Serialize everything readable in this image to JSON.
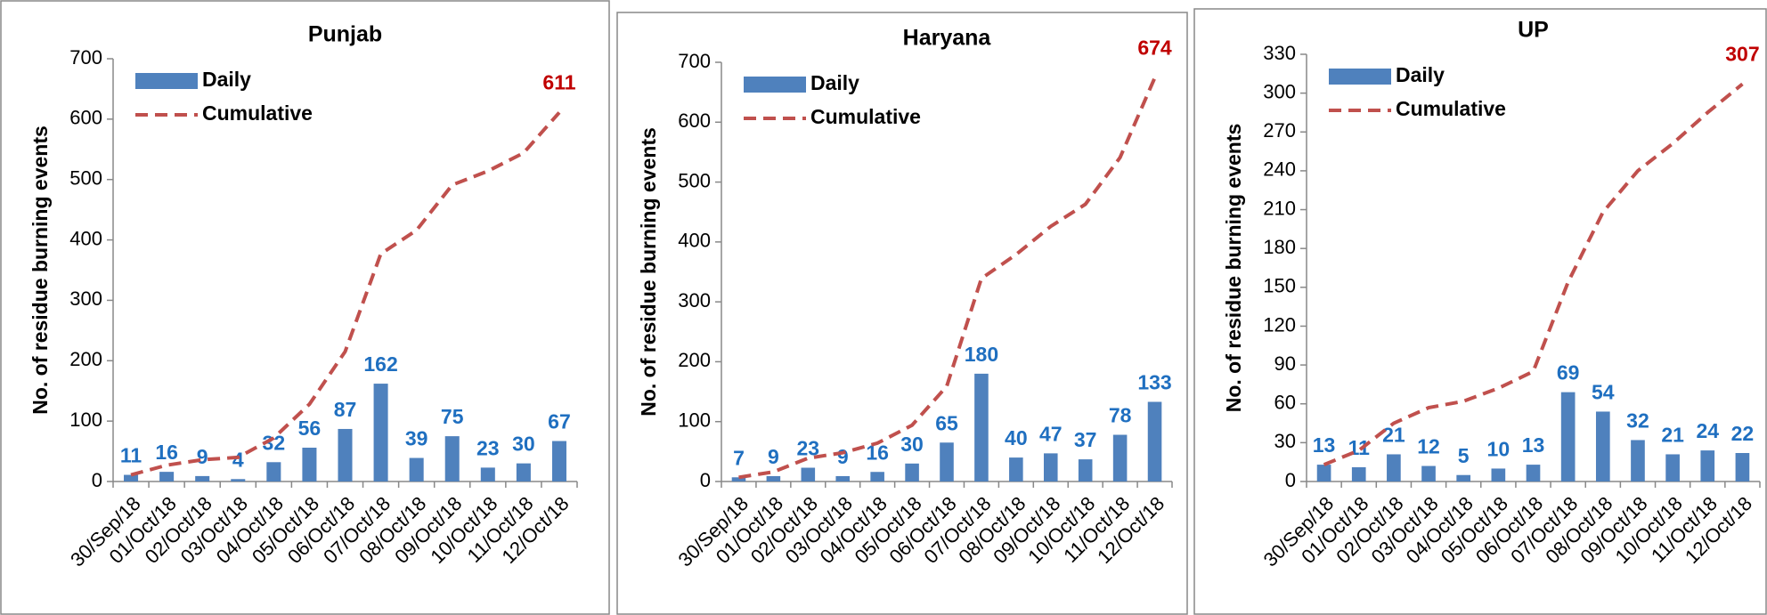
{
  "chart_data": [
    {
      "type": "bar",
      "title": "Punjab",
      "ylabel": "No. of residue burning events",
      "categories": [
        "30/Sep/18",
        "01/Oct/18",
        "02/Oct/18",
        "03/Oct/18",
        "04/Oct/18",
        "05/Oct/18",
        "06/Oct/18",
        "07/Oct/18",
        "08/Oct/18",
        "09/Oct/18",
        "10/Oct/18",
        "11/Oct/18",
        "12/Oct/18"
      ],
      "series": [
        {
          "name": "Daily",
          "type": "bar",
          "color": "#4f81bd",
          "label_color": "#1f6fc0",
          "values": [
            11,
            16,
            9,
            4,
            32,
            56,
            87,
            162,
            39,
            75,
            23,
            30,
            67
          ]
        },
        {
          "name": "Cumulative",
          "type": "line",
          "color": "#c0504d",
          "label_color": "#c00000",
          "values": [
            11,
            27,
            36,
            40,
            72,
            128,
            215,
            377,
            416,
            491,
            514,
            544,
            611
          ]
        }
      ],
      "ylim": [
        0,
        700
      ],
      "yticks": [
        0,
        100,
        200,
        300,
        400,
        500,
        600,
        700
      ]
    },
    {
      "type": "bar",
      "title": "Haryana",
      "ylabel": "No. of residue burning  events",
      "categories": [
        "30/Sep/18",
        "01/Oct/18",
        "02/Oct/18",
        "03/Oct/18",
        "04/Oct/18",
        "05/Oct/18",
        "06/Oct/18",
        "07/Oct/18",
        "08/Oct/18",
        "09/Oct/18",
        "10/Oct/18",
        "11/Oct/18",
        "12/Oct/18"
      ],
      "series": [
        {
          "name": "Daily",
          "type": "bar",
          "color": "#4f81bd",
          "label_color": "#1f6fc0",
          "values": [
            7,
            9,
            23,
            9,
            16,
            30,
            65,
            180,
            40,
            47,
            37,
            78,
            133
          ]
        },
        {
          "name": "Cumulative",
          "type": "line",
          "color": "#c0504d",
          "label_color": "#c00000",
          "values": [
            7,
            16,
            39,
            48,
            64,
            94,
            159,
            339,
            379,
            426,
            463,
            541,
            674
          ]
        }
      ],
      "ylim": [
        0,
        700
      ],
      "yticks": [
        0,
        100,
        200,
        300,
        400,
        500,
        600,
        700
      ]
    },
    {
      "type": "bar",
      "title": "UP",
      "ylabel": "No. of residue burning events",
      "categories": [
        "30/Sep/18",
        "01/Oct/18",
        "02/Oct/18",
        "03/Oct/18",
        "04/Oct/18",
        "05/Oct/18",
        "06/Oct/18",
        "07/Oct/18",
        "08/Oct/18",
        "09/Oct/18",
        "10/Oct/18",
        "11/Oct/18",
        "12/Oct/18"
      ],
      "series": [
        {
          "name": "Daily",
          "type": "bar",
          "color": "#4f81bd",
          "label_color": "#1f6fc0",
          "values": [
            13,
            11,
            21,
            12,
            5,
            10,
            13,
            69,
            54,
            32,
            21,
            24,
            22
          ]
        },
        {
          "name": "Cumulative",
          "type": "line",
          "color": "#c0504d",
          "label_color": "#c00000",
          "values": [
            13,
            24,
            45,
            57,
            62,
            72,
            85,
            154,
            208,
            240,
            261,
            285,
            307
          ]
        }
      ],
      "ylim": [
        0,
        330
      ],
      "yticks": [
        0,
        30,
        60,
        90,
        120,
        150,
        180,
        210,
        240,
        270,
        300,
        330
      ]
    }
  ]
}
